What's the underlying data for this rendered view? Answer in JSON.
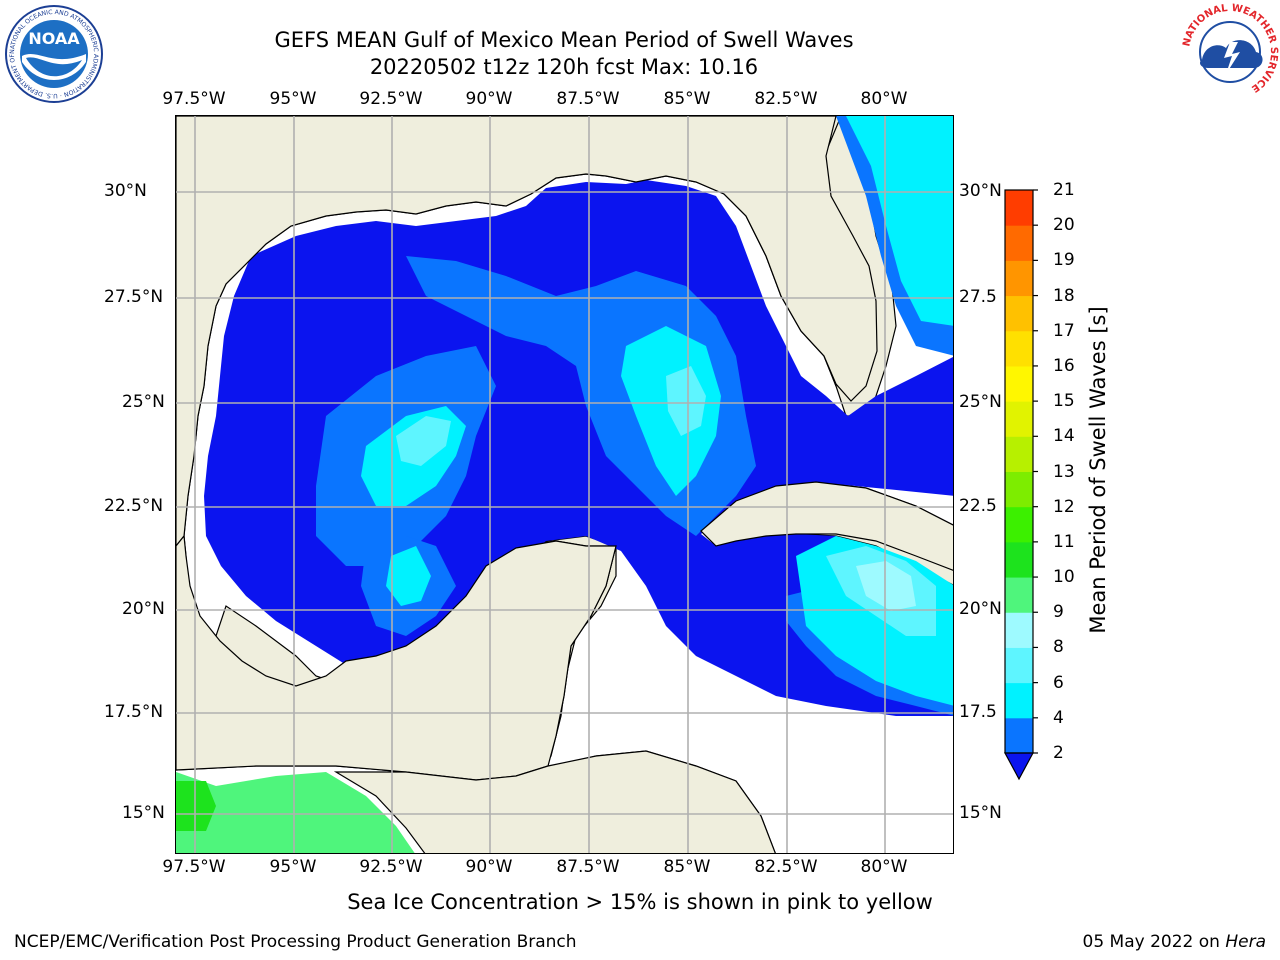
{
  "header": {
    "title_line1": "GEFS MEAN Gulf of Mexico Mean Period of Swell Waves",
    "title_line2": "20220502 t12z 120h fcst   Max: 10.16"
  },
  "map": {
    "lon_ticks": [
      "97.5°W",
      "95°W",
      "92.5°W",
      "90°W",
      "87.5°W",
      "85°W",
      "82.5°W",
      "80°W"
    ],
    "lat_ticks": [
      "30°N",
      "27.5°N",
      "25°N",
      "22.5°N",
      "20°N",
      "17.5°N",
      "15°N"
    ],
    "lat_ticks_right": [
      "30°N",
      "27.5",
      "25°N",
      "22.5",
      "20°N",
      "17.5",
      "15°N"
    ],
    "land_color": "#efeedd",
    "grid_color": "#b0b0b0"
  },
  "colorbar": {
    "title": "Mean Period of Swell Waves [s]",
    "levels": [
      "2",
      "4",
      "6",
      "8",
      "9",
      "10",
      "11",
      "12",
      "13",
      "14",
      "15",
      "16",
      "17",
      "18",
      "19",
      "20",
      "21"
    ],
    "colors": [
      "#0a75ff",
      "#00f2ff",
      "#5ef5ff",
      "#9efaff",
      "#4ff57c",
      "#1de31d",
      "#3cf000",
      "#7ded00",
      "#b7f000",
      "#e1f300",
      "#fff700",
      "#ffe000",
      "#ffc100",
      "#ff9500",
      "#ff6a00",
      "#ff3d00"
    ],
    "extend_color": "#0b14ef"
  },
  "footer": {
    "ice_note": "Sea Ice Concentration > 15% is shown in pink to yellow",
    "branch": "NCEP/EMC/Verification Post Processing Product Generation Branch",
    "date": "05 May 2022 on",
    "host": "Hera"
  },
  "logos": {
    "noaa_text": "NOAA",
    "noaa_ring": "NATIONAL OCEANIC AND ATMOSPHERIC ADMINISTRATION · U.S. DEPARTMENT OF COMMERCE",
    "nws_ring": "NATIONAL WEATHER SERVICE"
  }
}
